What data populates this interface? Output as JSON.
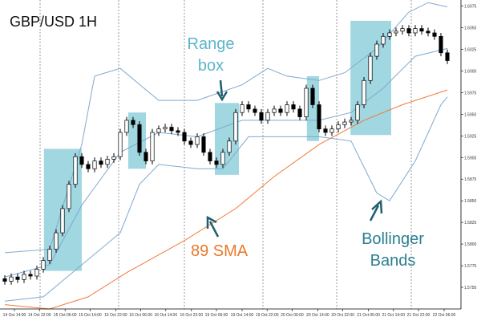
{
  "chart_data": {
    "type": "candlestick",
    "title": "GBP/USD 1H",
    "annotations": {
      "range_box": "Range box",
      "sma": "89 SMA",
      "bollinger": "Bollinger Bands"
    },
    "xlim": [
      -0.75,
      71.125
    ],
    "ylim": [
      1.5725,
      1.6082
    ],
    "yticks": [
      {
        "value": 1.575,
        "label": "1.5750"
      },
      1.5775,
      {
        "value": 1.58,
        "label": "1.5800"
      },
      1.5825,
      {
        "value": 1.585,
        "label": "1.5850"
      },
      1.5875,
      {
        "value": 1.59,
        "label": "1.5900"
      },
      1.5925,
      {
        "value": 1.595,
        "label": "1.5950"
      },
      1.5975,
      {
        "value": 1.6,
        "label": "1.6000"
      },
      1.6025,
      {
        "value": 1.605,
        "label": "1.6050"
      },
      1.6075
    ],
    "xticks": [
      {
        "value": 1.5,
        "label": "14 Oct 14:00"
      },
      {
        "value": 5.4,
        "label": "14 Oct 22:00"
      },
      {
        "value": 9.4,
        "label": "15 Oct 06:00"
      },
      {
        "value": 13.3,
        "label": "15 Oct 14:00"
      },
      {
        "value": 17.3,
        "label": "15 Oct 22:00"
      },
      {
        "value": 21.2,
        "label": "16 Oct 06:00"
      },
      {
        "value": 25.1,
        "label": "16 Oct 14:00"
      },
      {
        "value": 29.1,
        "label": "16 Oct 22:00"
      },
      {
        "value": 33,
        "label": "19 Oct 06:00"
      },
      {
        "value": 37,
        "label": "19 Oct 14:00"
      },
      {
        "value": 40.9,
        "label": "19 Oct 22:00"
      },
      {
        "value": 44.8,
        "label": "20 Oct 06:00"
      },
      {
        "value": 48.8,
        "label": "20 Oct 14:00"
      },
      {
        "value": 52.7,
        "label": "20 Oct 22:00"
      },
      {
        "value": 56.7,
        "label": "21 Oct 06:00"
      },
      {
        "value": 60.6,
        "label": "21 Oct 14:00"
      },
      {
        "value": 64.5,
        "label": "21 Oct 22:00"
      },
      {
        "value": 68.5,
        "label": "22 Oct 06:00"
      }
    ],
    "ohlc": {
      "up_color": "#ffffff",
      "down_color": "#000000",
      "open": [
        1.576,
        1.5757,
        1.5762,
        1.5759,
        1.5765,
        1.5763,
        1.5771,
        1.5781,
        1.5794,
        1.5813,
        1.5841,
        1.5869,
        1.5901,
        1.5892,
        1.5887,
        1.5896,
        1.5892,
        1.5898,
        1.5901,
        1.5929,
        1.5943,
        1.5938,
        1.5906,
        1.5896,
        1.5929,
        1.5933,
        1.5935,
        1.5931,
        1.5929,
        1.5919,
        1.5915,
        1.5924,
        1.5906,
        1.5896,
        1.5892,
        1.5906,
        1.5919,
        1.5952,
        1.5961,
        1.5956,
        1.5952,
        1.5943,
        1.5952,
        1.5956,
        1.5952,
        1.5961,
        1.5956,
        1.5947,
        1.598,
        1.5961,
        1.5933,
        1.5929,
        1.5933,
        1.5938,
        1.5941,
        1.5943,
        1.5961,
        1.5989,
        1.6017,
        1.6031,
        1.604,
        1.6044,
        1.6046,
        1.6049,
        1.6044,
        1.6049,
        1.6046,
        1.6044,
        1.604,
        1.6021
      ],
      "high": [
        1.5764,
        1.5766,
        1.5766,
        1.5769,
        1.5769,
        1.5775,
        1.5785,
        1.5798,
        1.5817,
        1.5845,
        1.5873,
        1.5905,
        1.5905,
        1.5896,
        1.59,
        1.59,
        1.5902,
        1.5905,
        1.5933,
        1.5947,
        1.5947,
        1.5942,
        1.591,
        1.5933,
        1.5937,
        1.5939,
        1.5939,
        1.5935,
        1.5933,
        1.5923,
        1.5928,
        1.5928,
        1.591,
        1.59,
        1.591,
        1.5923,
        1.5956,
        1.5965,
        1.5965,
        1.596,
        1.5956,
        1.5956,
        1.596,
        1.596,
        1.5965,
        1.5965,
        1.596,
        1.5984,
        1.5984,
        1.5965,
        1.5937,
        1.5937,
        1.5942,
        1.5945,
        1.5947,
        1.5965,
        1.5993,
        1.6021,
        1.6035,
        1.6044,
        1.6048,
        1.605,
        1.6053,
        1.6053,
        1.6053,
        1.6053,
        1.605,
        1.6048,
        1.6044,
        1.6025
      ],
      "low": [
        1.5753,
        1.5753,
        1.5755,
        1.5755,
        1.5759,
        1.5759,
        1.5767,
        1.5777,
        1.579,
        1.5809,
        1.5837,
        1.5865,
        1.5888,
        1.5883,
        1.5883,
        1.5888,
        1.5888,
        1.5894,
        1.5897,
        1.5925,
        1.5934,
        1.5902,
        1.5892,
        1.5892,
        1.5925,
        1.5929,
        1.5927,
        1.5925,
        1.5915,
        1.5911,
        1.5911,
        1.5902,
        1.5892,
        1.5888,
        1.5888,
        1.5902,
        1.5915,
        1.5948,
        1.5952,
        1.5948,
        1.5939,
        1.5939,
        1.5948,
        1.5948,
        1.5948,
        1.5952,
        1.5943,
        1.5943,
        1.5957,
        1.5929,
        1.5925,
        1.5925,
        1.5929,
        1.5934,
        1.5937,
        1.5939,
        1.5957,
        1.5985,
        1.6013,
        1.6027,
        1.6036,
        1.604,
        1.6042,
        1.604,
        1.604,
        1.6042,
        1.604,
        1.6036,
        1.6017,
        1.6008
      ],
      "close": [
        1.5757,
        1.5762,
        1.5759,
        1.5765,
        1.5763,
        1.5771,
        1.5781,
        1.5794,
        1.5813,
        1.5841,
        1.5869,
        1.5901,
        1.5892,
        1.5887,
        1.5896,
        1.5892,
        1.5898,
        1.5901,
        1.5929,
        1.5943,
        1.5938,
        1.5906,
        1.5896,
        1.5929,
        1.5933,
        1.5935,
        1.5931,
        1.5929,
        1.5919,
        1.5915,
        1.5924,
        1.5906,
        1.5896,
        1.5892,
        1.5906,
        1.5919,
        1.5952,
        1.5961,
        1.5956,
        1.5952,
        1.5943,
        1.5952,
        1.5956,
        1.5952,
        1.5961,
        1.5956,
        1.5947,
        1.598,
        1.5961,
        1.5933,
        1.5929,
        1.5933,
        1.5938,
        1.5941,
        1.5943,
        1.5961,
        1.5989,
        1.6017,
        1.6031,
        1.604,
        1.6044,
        1.6046,
        1.6049,
        1.6044,
        1.6049,
        1.6046,
        1.6044,
        1.604,
        1.6021,
        1.6012
      ]
    },
    "overlays": [
      {
        "color": "#f07a3a",
        "x": [
          0,
          7,
          13,
          19,
          28,
          36,
          42,
          49,
          56,
          62,
          69
        ],
        "values": [
          1.573,
          1.5725,
          1.5739,
          1.5767,
          1.5804,
          1.5841,
          1.5878,
          1.5915,
          1.5943,
          1.5961,
          1.5978
        ]
      },
      {
        "color": "#7fa9cf",
        "x": [
          0,
          7,
          12,
          14,
          18,
          24,
          30,
          37,
          41,
          44,
          49,
          53,
          58,
          63,
          66,
          69
        ],
        "values": [
          1.579,
          1.5794,
          1.5915,
          1.5994,
          1.6003,
          1.5966,
          1.5966,
          1.5984,
          1.6003,
          1.5994,
          1.5989,
          1.5998,
          1.6026,
          1.6068,
          1.6079,
          1.6074
        ]
      },
      {
        "color": "#7fa9cf",
        "x": [
          0,
          7,
          12,
          18,
          24,
          30,
          37,
          43,
          49,
          54,
          59,
          64,
          69
        ],
        "values": [
          1.5762,
          1.5776,
          1.5845,
          1.5906,
          1.5929,
          1.5924,
          1.5943,
          1.5943,
          1.5943,
          1.5952,
          1.598,
          1.6017,
          1.6026
        ]
      },
      {
        "color": "#7fa9cf",
        "x": [
          0,
          6,
          12,
          18,
          21,
          24,
          30,
          34,
          38,
          43,
          49,
          54,
          58,
          60,
          64,
          68,
          69
        ],
        "values": [
          1.5734,
          1.5739,
          1.5776,
          1.5813,
          1.5869,
          1.5892,
          1.5887,
          1.5887,
          1.5924,
          1.5924,
          1.5924,
          1.5919,
          1.5859,
          1.585,
          1.5896,
          1.5961,
          1.597
        ]
      }
    ],
    "range_boxes": {
      "color": "#8fd0da",
      "boxes": [
        {
          "x": [
            6.1,
            12
          ],
          "y": [
            1.5769,
            1.591
          ]
        },
        {
          "x": [
            19.25,
            22
          ],
          "y": [
            1.5887,
            1.5952
          ]
        },
        {
          "x": [
            32.75,
            36.5
          ],
          "y": [
            1.588,
            1.5963
          ]
        },
        {
          "x": [
            47.1,
            49
          ],
          "y": [
            1.5919,
            1.5994
          ]
        },
        {
          "x": [
            53.9,
            60.25
          ],
          "y": [
            1.5926,
            1.6058
          ]
        }
      ]
    }
  }
}
